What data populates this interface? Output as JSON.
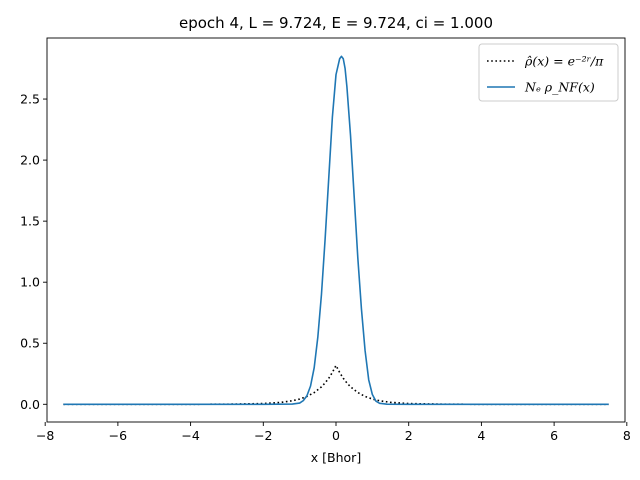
{
  "chart_data": {
    "type": "line",
    "title": "epoch 4, L = 9.724, E = 9.724, ci = 1.000",
    "xlabel": "x [Bhor]",
    "ylabel": "",
    "xlim": [
      -7.95,
      7.95
    ],
    "ylim": [
      -0.145,
      3.0
    ],
    "xticks": [
      -8,
      -6,
      -4,
      -2,
      0,
      2,
      4,
      6,
      8
    ],
    "xtick_labels": [
      "−8",
      "−6",
      "−4",
      "−2",
      "0",
      "2",
      "4",
      "6",
      "8"
    ],
    "yticks": [
      0.0,
      0.5,
      1.0,
      1.5,
      2.0,
      2.5
    ],
    "ytick_labels": [
      "0.0",
      "0.5",
      "1.0",
      "1.5",
      "2.0",
      "2.5"
    ],
    "grid": false,
    "legend_position": "upper-right",
    "legend": [
      "ρ̂(x) = e⁻²ʳ/π",
      "Nₑ ρ_NF(x)"
    ],
    "series": [
      {
        "name": "ρ̂(x) = e⁻²ʳ/π",
        "color": "#000000",
        "style": "dotted",
        "x": [
          -7.5,
          -6,
          -4,
          -3,
          -2,
          -1.5,
          -1.2,
          -1.0,
          -0.8,
          -0.6,
          -0.4,
          -0.3,
          -0.2,
          -0.1,
          0,
          0.1,
          0.2,
          0.3,
          0.4,
          0.6,
          0.8,
          1.0,
          1.2,
          1.5,
          2,
          3,
          4,
          6,
          7.5
        ],
        "y": [
          0.0,
          0.0,
          0.0,
          0.001,
          0.006,
          0.016,
          0.029,
          0.043,
          0.064,
          0.096,
          0.143,
          0.175,
          0.213,
          0.261,
          0.318,
          0.261,
          0.213,
          0.175,
          0.143,
          0.096,
          0.064,
          0.043,
          0.029,
          0.016,
          0.006,
          0.001,
          0.0,
          0.0,
          0.0
        ]
      },
      {
        "name": "Nₑ ρ_NF(x)",
        "color": "#1f77b4",
        "style": "solid",
        "x": [
          -7.5,
          -4,
          -2,
          -1.2,
          -1.0,
          -0.9,
          -0.8,
          -0.7,
          -0.6,
          -0.5,
          -0.4,
          -0.3,
          -0.2,
          -0.1,
          0.0,
          0.1,
          0.15,
          0.2,
          0.25,
          0.3,
          0.4,
          0.5,
          0.6,
          0.7,
          0.8,
          0.9,
          1.0,
          1.1,
          1.2,
          1.4,
          2,
          4,
          7.5
        ],
        "y": [
          0.0,
          0.0,
          0.0,
          0.002,
          0.01,
          0.03,
          0.07,
          0.15,
          0.3,
          0.55,
          0.9,
          1.35,
          1.85,
          2.35,
          2.7,
          2.83,
          2.85,
          2.83,
          2.75,
          2.6,
          2.2,
          1.7,
          1.2,
          0.78,
          0.44,
          0.2,
          0.08,
          0.025,
          0.008,
          0.001,
          0.0,
          0.0,
          0.0
        ]
      }
    ]
  }
}
